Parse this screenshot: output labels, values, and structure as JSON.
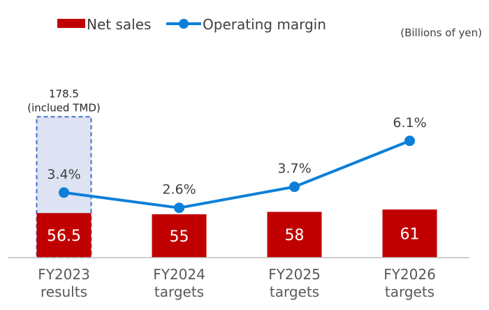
{
  "chart_data": {
    "type": "bar+line",
    "categories": [
      [
        "FY2023",
        "results"
      ],
      [
        "FY2024",
        "targets"
      ],
      [
        "FY2025",
        "targets"
      ],
      [
        "FY2026",
        "targets"
      ]
    ],
    "series": [
      {
        "name": "Net sales",
        "type": "bar",
        "color": "#c00000",
        "values": [
          56.5,
          55,
          58,
          61
        ]
      },
      {
        "name": "Operating margin",
        "type": "line",
        "color": "#0c7fd8",
        "values": [
          3.4,
          2.6,
          3.7,
          6.1
        ],
        "labels": [
          "3.4%",
          "2.6%",
          "3.7%",
          "6.1%"
        ]
      }
    ],
    "annotation": {
      "category_index": 0,
      "value": 178.5,
      "line1": "178.5",
      "line2": "(inclued TMD)",
      "fill": "#dde3f3",
      "border": "#4472c4"
    },
    "unit": "(Billions of yen)",
    "bar_ylim": [
      0,
      300
    ],
    "line_ylim": [
      0,
      12
    ],
    "legend_position": "top"
  }
}
